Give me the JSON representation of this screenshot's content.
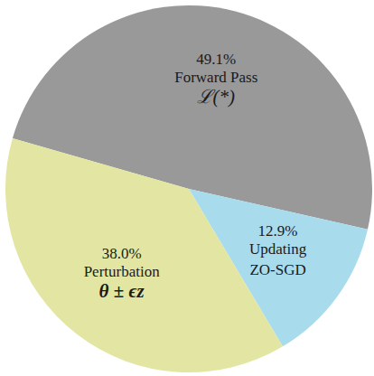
{
  "chart_data": {
    "type": "pie",
    "categories": [
      "Forward Pass",
      "Updating",
      "Perturbation"
    ],
    "annotations": [
      "ℒ(*)",
      "ZO-SGD",
      "θ ± ϵz"
    ],
    "values": [
      49.1,
      12.9,
      38.0
    ],
    "value_labels": [
      "49.1%",
      "12.9%",
      "38.0%"
    ],
    "colors": [
      "#999999",
      "#a8dced",
      "#e3e6a3"
    ],
    "data_labels": true
  }
}
